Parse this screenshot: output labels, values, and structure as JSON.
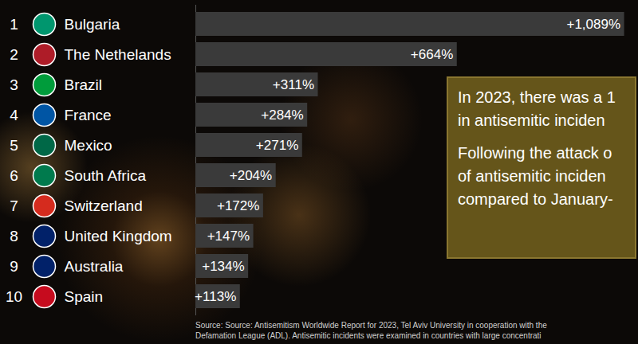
{
  "chart_data": {
    "type": "bar",
    "orientation": "horizontal",
    "categories": [
      "Bulgaria",
      "The Nethelands",
      "Brazil",
      "France",
      "Mexico",
      "South Africa",
      "Switzerland",
      "United Kingdom",
      "Australia",
      "Spain"
    ],
    "ranks": [
      1,
      2,
      3,
      4,
      5,
      6,
      7,
      8,
      9,
      10
    ],
    "values": [
      1089,
      664,
      311,
      284,
      271,
      204,
      172,
      147,
      134,
      113
    ],
    "value_labels": [
      "+1,089%",
      "+664%",
      "+311%",
      "+284%",
      "+271%",
      "+204%",
      "+172%",
      "+147%",
      "+134%",
      "+113%"
    ],
    "data_labels": true,
    "color": "#3a3a3a",
    "xlim": [
      0,
      1100
    ],
    "tick_labels": false,
    "grid": false,
    "annotations": [
      [
        "In 2023, there was a 1",
        "in antisemitic inciden"
      ],
      [
        "Following the attack o",
        "of antisemitic inciden",
        "compared to January-"
      ]
    ],
    "source": [
      "Source: Source: Antisemitism Worldwide Report for 2023, Tel Aviv University in cooperation with the",
      "Defamation League (ADL). Antisemitic incidents were examined in countries with large concentrati"
    ]
  }
}
